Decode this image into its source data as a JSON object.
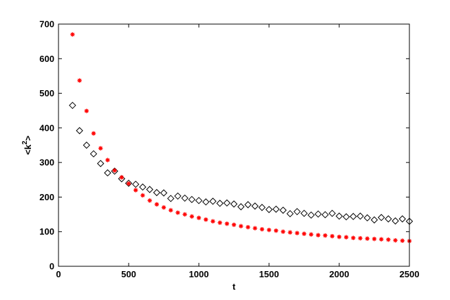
{
  "chart_data": {
    "type": "scatter",
    "xlabel": "t",
    "ylabel_base": "<k",
    "ylabel_sup": "2",
    "ylabel_end": ">",
    "xlim": [
      0,
      2500
    ],
    "ylim": [
      0,
      700
    ],
    "xticks": [
      0,
      500,
      1000,
      1500,
      2000,
      2500
    ],
    "yticks": [
      0,
      100,
      200,
      300,
      400,
      500,
      600,
      700
    ],
    "grid": false,
    "series": [
      {
        "marker": "diamond",
        "color": "#000000",
        "x": [
          100,
          150,
          200,
          250,
          300,
          350,
          400,
          450,
          500,
          550,
          600,
          650,
          700,
          750,
          800,
          850,
          900,
          950,
          1000,
          1050,
          1100,
          1150,
          1200,
          1250,
          1300,
          1350,
          1400,
          1450,
          1500,
          1550,
          1600,
          1650,
          1700,
          1750,
          1800,
          1850,
          1900,
          1950,
          2000,
          2050,
          2100,
          2150,
          2200,
          2250,
          2300,
          2350,
          2400,
          2450,
          2500
        ],
        "y": [
          465,
          392,
          350,
          325,
          297,
          270,
          275,
          253,
          240,
          237,
          229,
          222,
          213,
          212,
          196,
          203,
          197,
          193,
          190,
          186,
          188,
          182,
          183,
          180,
          172,
          178,
          174,
          170,
          164,
          165,
          162,
          152,
          158,
          153,
          148,
          151,
          149,
          153,
          145,
          143,
          144,
          145,
          140,
          134,
          141,
          137,
          131,
          137,
          130
        ]
      },
      {
        "marker": "star",
        "color": "#ff0000",
        "x": [
          100,
          150,
          200,
          250,
          300,
          350,
          400,
          450,
          500,
          550,
          600,
          650,
          700,
          750,
          800,
          850,
          900,
          950,
          1000,
          1050,
          1100,
          1150,
          1200,
          1250,
          1300,
          1350,
          1400,
          1450,
          1500,
          1550,
          1600,
          1650,
          1700,
          1750,
          1800,
          1850,
          1900,
          1950,
          2000,
          2050,
          2100,
          2150,
          2200,
          2250,
          2300,
          2350,
          2400,
          2450,
          2500
        ],
        "y": [
          670,
          537,
          449,
          384,
          341,
          307,
          277,
          257,
          239,
          220,
          205,
          190,
          179,
          170,
          162,
          155,
          150,
          144,
          140,
          135,
          130,
          126,
          123,
          120,
          116,
          113,
          110,
          107,
          105,
          103,
          100,
          98,
          96,
          94,
          92,
          90,
          89,
          87,
          85,
          84,
          82,
          81,
          80,
          79,
          78,
          77,
          75,
          74,
          73
        ]
      }
    ]
  }
}
